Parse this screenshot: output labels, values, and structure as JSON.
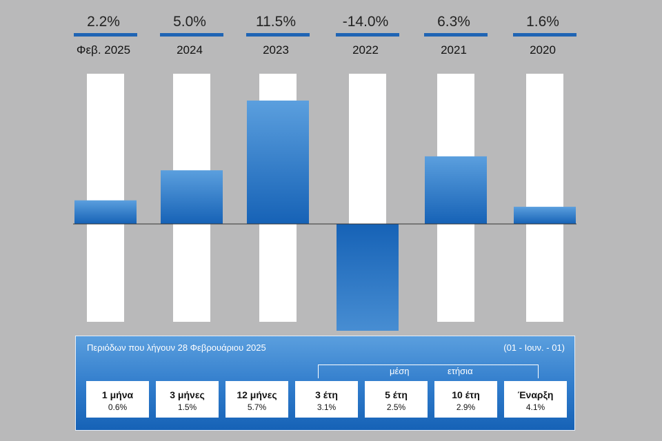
{
  "chart_data": {
    "type": "bar",
    "categories": [
      "Φεβ. 2025",
      "2024",
      "2023",
      "2022",
      "2021",
      "2020"
    ],
    "values": [
      2.2,
      5.0,
      11.5,
      -14.0,
      6.3,
      1.6
    ],
    "value_labels": [
      "2.2%",
      "5.0%",
      "11.5%",
      "-14.0%",
      "6.3%",
      "1.6%"
    ],
    "ylim": [
      -14.0,
      14.0
    ],
    "grid": false,
    "colors": {
      "bar_top": "#5b9fde",
      "bar_bottom": "#1662b6",
      "header_line": "#1f64b4",
      "background_column": "#ffffff",
      "page_background": "#b9b9ba"
    }
  },
  "summary": {
    "title": "Περιόδων που λήγουν 28 Φεβρουάριου 2025",
    "range": "(01 - Ιουν. - 01)",
    "avg_label": "μέση",
    "annual_label": "ετήσια",
    "periods": [
      {
        "label": "1 μήνα",
        "value": "0.6%"
      },
      {
        "label": "3 μήνες",
        "value": "1.5%"
      },
      {
        "label": "12 μήνες",
        "value": "5.7%"
      },
      {
        "label": "3 έτη",
        "value": "3.1%"
      },
      {
        "label": "5 έτη",
        "value": "2.5%"
      },
      {
        "label": "10 έτη",
        "value": "2.9%"
      },
      {
        "label": "Έναρξη",
        "value": "4.1%"
      }
    ]
  }
}
